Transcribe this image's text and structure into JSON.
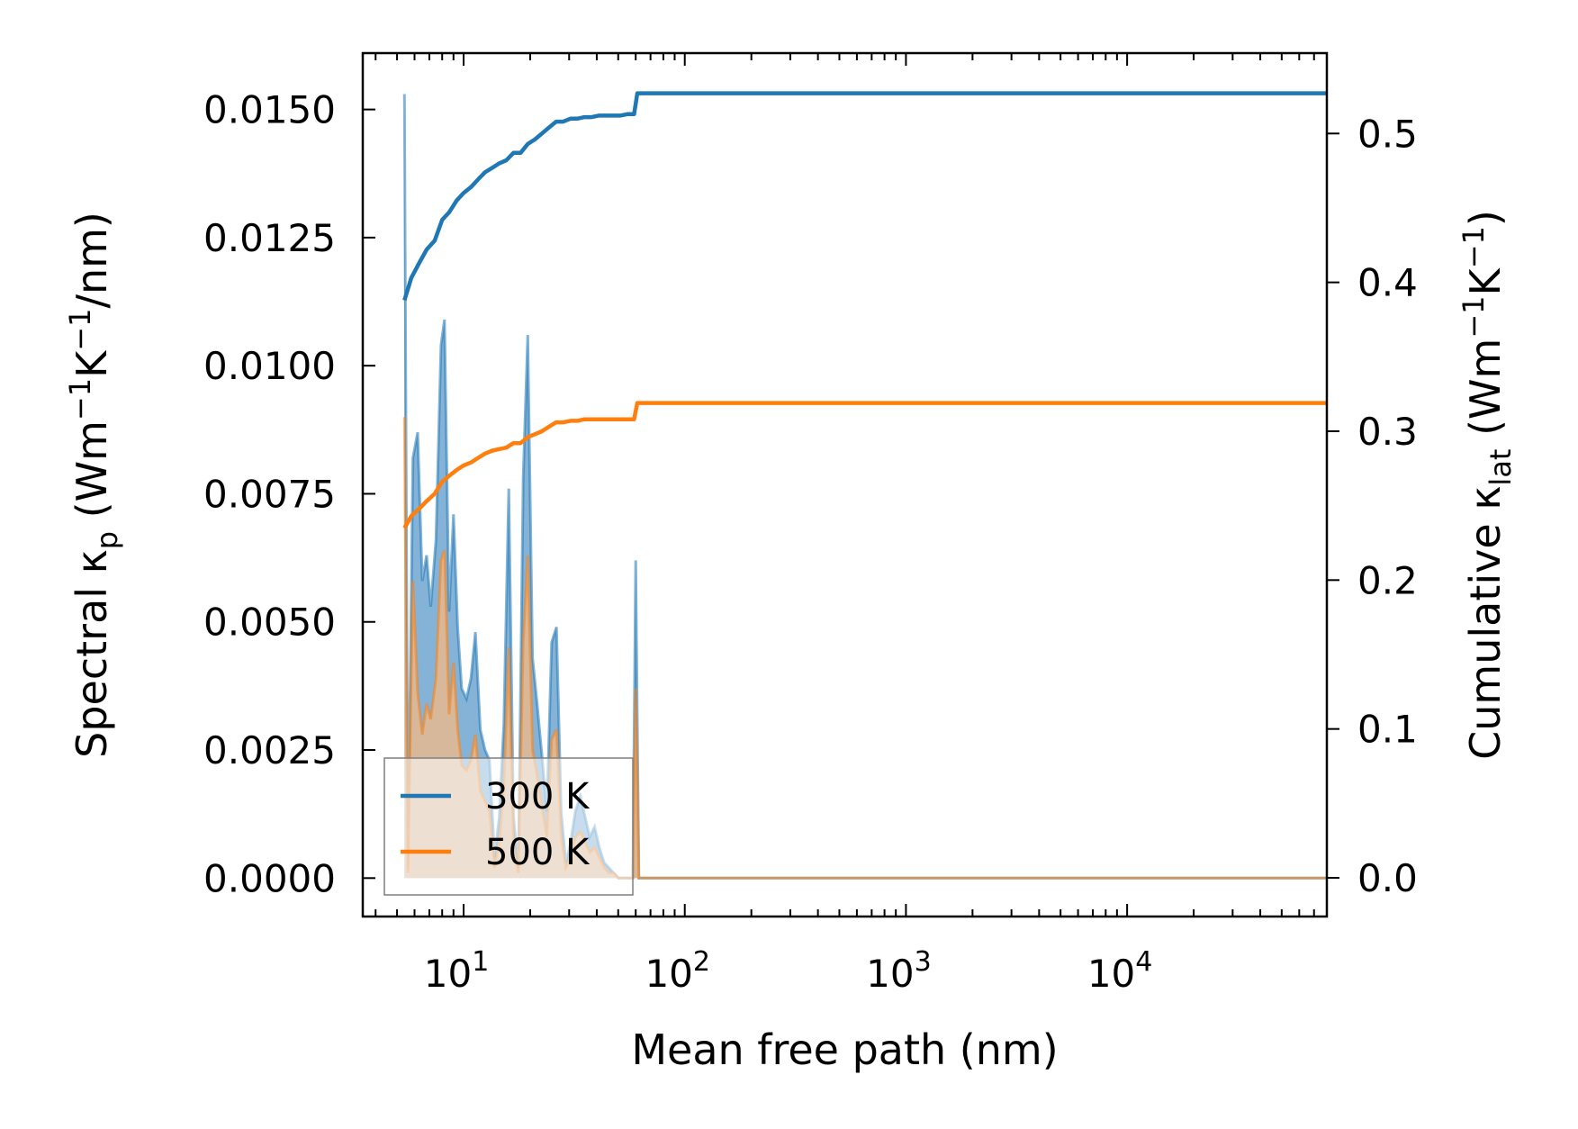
{
  "chart_data": {
    "type": "line",
    "x_scale": "log",
    "xlabel": "Mean free path (nm)",
    "ylabel_left": {
      "main": "Spectral κ",
      "sub": "p",
      "units_prefix": " (Wm",
      "units_sup1": "−1",
      "units_mid": "K",
      "units_sup2": "−1",
      "units_suffix": "/nm)"
    },
    "ylabel_right": {
      "main": "Cumulative κ",
      "sub": "lat",
      "units_prefix": " (Wm",
      "units_sup1": "−1",
      "units_mid": "K",
      "units_sup2": "−1",
      "units_suffix": ")"
    },
    "xlim": [
      3.5,
      80000
    ],
    "ylim_left": [
      -0.00075,
      0.0161
    ],
    "ylim_right": [
      -0.026,
      0.554
    ],
    "x_ticks": [
      {
        "value": 10,
        "base": "10",
        "exp": "1"
      },
      {
        "value": 100,
        "base": "10",
        "exp": "2"
      },
      {
        "value": 1000,
        "base": "10",
        "exp": "3"
      },
      {
        "value": 10000,
        "base": "10",
        "exp": "4"
      }
    ],
    "y_ticks_left": [
      "0.0000",
      "0.0025",
      "0.0050",
      "0.0075",
      "0.0100",
      "0.0125",
      "0.0150"
    ],
    "y_ticks_left_values": [
      0,
      0.0025,
      0.005,
      0.0075,
      0.01,
      0.0125,
      0.015
    ],
    "y_ticks_right": [
      "0.0",
      "0.1",
      "0.2",
      "0.3",
      "0.4",
      "0.5"
    ],
    "y_ticks_right_values": [
      0,
      0.1,
      0.2,
      0.3,
      0.4,
      0.5
    ],
    "legend": {
      "position": "lower-left",
      "entries": [
        "300 K",
        "500 K"
      ]
    },
    "series": [
      {
        "name": "300 K",
        "color": "#1f77b4",
        "fill": "#6fa6d0",
        "spectral": {
          "x": [
            5.4,
            5.6,
            5.9,
            6.2,
            6.5,
            6.8,
            7.1,
            7.5,
            7.9,
            8.2,
            8.6,
            9.0,
            9.4,
            9.8,
            10.3,
            10.8,
            11.3,
            11.9,
            12.5,
            13.1,
            13.8,
            14.5,
            15.2,
            16.0,
            16.8,
            17.7,
            18.6,
            19.5,
            20.5,
            21.5,
            22.6,
            23.8,
            25.0,
            26.3,
            27.6,
            29.0,
            30.5,
            32.0,
            33.7,
            35.4,
            37.2,
            39.1,
            41.1,
            43.2,
            45.4,
            47.7,
            50.1,
            52.7,
            55.4,
            58.2,
            60.0,
            62.0,
            64.0,
            66.0,
            80000
          ],
          "y": [
            0.0153,
            0.0002,
            0.0082,
            0.0087,
            0.0058,
            0.0063,
            0.0053,
            0.0066,
            0.0104,
            0.0109,
            0.0052,
            0.0071,
            0.0049,
            0.0037,
            0.0035,
            0.0039,
            0.0048,
            0.0029,
            0.0025,
            0.0023,
            0.0004,
            0.0012,
            0.003,
            0.0076,
            0.0012,
            0.0002,
            0.0078,
            0.0106,
            0.0043,
            0.0034,
            0.0024,
            0.0013,
            0.0046,
            0.0049,
            0.0013,
            0.0003,
            0.0007,
            0.0013,
            0.0016,
            0.0012,
            0.0008,
            0.001,
            0.0006,
            0.0003,
            0.0002,
            0.0001,
            0.0,
            0.0,
            0.0,
            0.0,
            0.0062,
            0.0,
            0.0,
            0.0,
            0.0
          ]
        },
        "cumulative": {
          "x": [
            5.4,
            5.8,
            6.3,
            6.8,
            7.4,
            8.0,
            8.6,
            9.3,
            10.0,
            10.8,
            11.6,
            12.5,
            13.5,
            14.5,
            15.6,
            16.8,
            18.1,
            19.5,
            21.0,
            22.6,
            24.3,
            26.2,
            28.2,
            30.4,
            32.7,
            35.2,
            37.9,
            40.8,
            44.0,
            47.4,
            51.0,
            55.0,
            59.0,
            61.0,
            80000
          ],
          "y": [
            0.388,
            0.403,
            0.413,
            0.422,
            0.428,
            0.442,
            0.447,
            0.455,
            0.46,
            0.464,
            0.469,
            0.474,
            0.477,
            0.48,
            0.482,
            0.487,
            0.487,
            0.493,
            0.496,
            0.5,
            0.504,
            0.508,
            0.508,
            0.51,
            0.51,
            0.511,
            0.511,
            0.512,
            0.512,
            0.512,
            0.512,
            0.513,
            0.513,
            0.527,
            0.527
          ]
        }
      },
      {
        "name": "500 K",
        "color": "#ff7f0e",
        "fill": "#f4ba86",
        "spectral": {
          "x": [
            5.4,
            5.6,
            5.9,
            6.2,
            6.5,
            6.8,
            7.1,
            7.5,
            7.9,
            8.2,
            8.6,
            9.0,
            9.4,
            9.8,
            10.3,
            10.8,
            11.3,
            11.9,
            12.5,
            13.1,
            13.8,
            14.5,
            15.2,
            16.0,
            16.8,
            17.7,
            18.6,
            19.5,
            20.5,
            21.5,
            22.6,
            23.8,
            25.0,
            26.3,
            27.6,
            29.0,
            30.5,
            32.0,
            33.7,
            35.4,
            37.2,
            39.1,
            41.1,
            43.2,
            45.4,
            47.7,
            50.1,
            52.7,
            55.4,
            58.2,
            60.0,
            62.0,
            64.0,
            66.0,
            80000
          ],
          "y": [
            0.009,
            0.0001,
            0.0058,
            0.0036,
            0.0028,
            0.0034,
            0.0031,
            0.0039,
            0.0062,
            0.0064,
            0.0032,
            0.0042,
            0.0029,
            0.0022,
            0.0021,
            0.0023,
            0.0028,
            0.0017,
            0.0015,
            0.0013,
            0.0002,
            0.0007,
            0.0018,
            0.0045,
            0.0007,
            0.0001,
            0.0046,
            0.0063,
            0.0025,
            0.002,
            0.0014,
            0.0008,
            0.0027,
            0.0029,
            0.0008,
            0.0002,
            0.0004,
            0.0008,
            0.0009,
            0.0007,
            0.0005,
            0.0006,
            0.0004,
            0.0002,
            0.0001,
            0.0001,
            0.0,
            0.0,
            0.0,
            0.0,
            0.0037,
            0.0,
            0.0,
            0.0,
            0.0
          ]
        },
        "cumulative": {
          "x": [
            5.4,
            5.8,
            6.3,
            6.8,
            7.4,
            8.0,
            8.6,
            9.3,
            10.0,
            10.8,
            11.6,
            12.5,
            13.5,
            14.5,
            15.6,
            16.8,
            18.1,
            19.5,
            21.0,
            22.6,
            24.3,
            26.2,
            28.2,
            30.4,
            32.7,
            35.2,
            37.9,
            40.8,
            44.0,
            47.4,
            51.0,
            55.0,
            59.0,
            61.0,
            80000
          ],
          "y": [
            0.235,
            0.243,
            0.248,
            0.253,
            0.258,
            0.266,
            0.27,
            0.274,
            0.277,
            0.279,
            0.282,
            0.285,
            0.287,
            0.288,
            0.289,
            0.292,
            0.292,
            0.296,
            0.298,
            0.3,
            0.303,
            0.306,
            0.306,
            0.307,
            0.307,
            0.308,
            0.308,
            0.308,
            0.308,
            0.308,
            0.308,
            0.308,
            0.308,
            0.319,
            0.319
          ]
        }
      }
    ]
  }
}
